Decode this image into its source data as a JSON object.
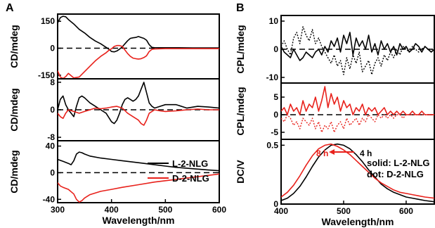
{
  "panel_labels": [
    "A",
    "B"
  ],
  "colors": {
    "l_series": "#000000",
    "d_series": "#e8211b"
  },
  "chart_data": [
    {
      "id": "A1",
      "type": "line",
      "panel": "A",
      "ylabel": "CD/mdeg",
      "xlim": [
        300,
        600
      ],
      "ylim": [
        -170,
        190
      ],
      "yticks": [
        150,
        0,
        -150
      ],
      "xticks": [],
      "zero_line": true,
      "series": [
        {
          "color": "#000000",
          "x": [
            300,
            305,
            310,
            315,
            320,
            330,
            340,
            350,
            360,
            370,
            380,
            390,
            395,
            400,
            405,
            410,
            415,
            420,
            425,
            430,
            435,
            440,
            445,
            450,
            455,
            460,
            465,
            470,
            475,
            480,
            490,
            500,
            520,
            550,
            580,
            600
          ],
          "y": [
            140,
            170,
            178,
            175,
            160,
            135,
            105,
            85,
            60,
            40,
            25,
            5,
            -5,
            -18,
            -20,
            -15,
            -5,
            8,
            25,
            42,
            55,
            58,
            60,
            65,
            60,
            55,
            45,
            20,
            5,
            3,
            3,
            3,
            3,
            2,
            2,
            2
          ]
        },
        {
          "color": "#e8211b",
          "x": [
            300,
            305,
            310,
            315,
            320,
            330,
            340,
            350,
            360,
            370,
            380,
            390,
            395,
            400,
            405,
            410,
            415,
            420,
            425,
            430,
            435,
            440,
            445,
            450,
            455,
            460,
            465,
            470,
            475,
            480,
            490,
            500,
            520,
            550,
            580,
            600
          ],
          "y": [
            -125,
            -160,
            -168,
            -158,
            -140,
            -165,
            -160,
            -130,
            -100,
            -70,
            -45,
            -25,
            -12,
            -3,
            10,
            15,
            15,
            10,
            -10,
            -30,
            -45,
            -55,
            -58,
            -60,
            -58,
            -52,
            -42,
            -18,
            -6,
            -4,
            -3,
            -2,
            -2,
            -2,
            -2,
            -2
          ]
        }
      ]
    },
    {
      "id": "A2",
      "type": "line",
      "panel": "A",
      "ylabel": "CD/mdeg",
      "xlim": [
        300,
        600
      ],
      "ylim": [
        -9,
        9
      ],
      "yticks": [
        8,
        0,
        -8
      ],
      "xticks": [],
      "zero_line": true,
      "series": [
        {
          "name": "L-2-NLG",
          "color": "#000000",
          "x": [
            300,
            305,
            310,
            315,
            320,
            325,
            330,
            335,
            340,
            345,
            350,
            360,
            370,
            380,
            390,
            400,
            405,
            410,
            415,
            420,
            425,
            430,
            435,
            440,
            445,
            450,
            455,
            460,
            465,
            470,
            475,
            480,
            490,
            500,
            520,
            540,
            560,
            580,
            600
          ],
          "y": [
            0,
            3,
            4,
            1.5,
            0,
            -1,
            -2,
            1,
            3.5,
            4,
            3.5,
            2,
            1,
            0,
            -1,
            -3.5,
            -4,
            -3,
            -1,
            1.5,
            3,
            3.5,
            3,
            2.5,
            3,
            4,
            6,
            8,
            5,
            2,
            1,
            0.5,
            1,
            1.5,
            1.5,
            0.5,
            1,
            0.8,
            0.5
          ]
        },
        {
          "name": "D-2-NLG",
          "color": "#e8211b",
          "x": [
            300,
            305,
            310,
            315,
            320,
            330,
            340,
            350,
            360,
            370,
            380,
            390,
            400,
            410,
            420,
            430,
            440,
            450,
            455,
            460,
            465,
            470,
            475,
            480,
            490,
            500,
            520,
            540,
            560,
            580,
            600
          ],
          "y": [
            -1,
            -2,
            -2.5,
            -1,
            0,
            -0.5,
            -1,
            -0.5,
            0,
            0.5,
            0.3,
            0.5,
            0.8,
            1,
            0.5,
            -1,
            -2,
            -3,
            -4,
            -4.5,
            -3,
            -1,
            -0.5,
            0,
            -0.3,
            -0.5,
            -0.3,
            0,
            0.2,
            0,
            0
          ]
        }
      ],
      "legend": {
        "placement": "bottom-right",
        "entries": [
          "L-2-NLG",
          "D-2-NLG"
        ]
      }
    },
    {
      "id": "A3",
      "type": "line",
      "panel": "A",
      "ylabel": "CD/mdeg",
      "xlabel": "Wavelength/nm",
      "xlim": [
        300,
        600
      ],
      "ylim": [
        -45,
        48
      ],
      "yticks": [
        40,
        0,
        -40
      ],
      "xticks": [
        300,
        400,
        500,
        600
      ],
      "zero_line": true,
      "series": [
        {
          "color": "#000000",
          "x": [
            300,
            310,
            320,
            325,
            330,
            335,
            340,
            345,
            350,
            360,
            380,
            400,
            420,
            450,
            480,
            500,
            520,
            550,
            580,
            600
          ],
          "y": [
            20,
            17,
            14,
            12,
            18,
            28,
            31,
            30,
            28,
            25,
            22,
            20,
            18,
            15,
            12,
            10,
            8,
            6,
            4,
            3
          ]
        },
        {
          "color": "#e8211b",
          "x": [
            300,
            305,
            310,
            320,
            330,
            335,
            340,
            345,
            350,
            360,
            380,
            400,
            420,
            450,
            480,
            500,
            520,
            550,
            580,
            600
          ],
          "y": [
            -15,
            -20,
            -22,
            -25,
            -32,
            -40,
            -44,
            -42,
            -38,
            -33,
            -28,
            -25,
            -22,
            -18,
            -14,
            -12,
            -10,
            -7,
            -4,
            -2
          ]
        }
      ]
    },
    {
      "id": "B1",
      "type": "line",
      "panel": "B",
      "ylabel": "CPL/mdeg",
      "xlim": [
        400,
        645
      ],
      "ylim": [
        -12,
        12
      ],
      "yticks": [
        10,
        0,
        -10
      ],
      "xticks": [],
      "zero_line": true,
      "series": [
        {
          "style": "solid",
          "color": "#000000",
          "x": [
            400,
            405,
            410,
            415,
            420,
            425,
            430,
            435,
            440,
            445,
            450,
            455,
            460,
            465,
            470,
            475,
            480,
            485,
            490,
            495,
            500,
            505,
            510,
            515,
            520,
            525,
            530,
            535,
            540,
            545,
            550,
            555,
            560,
            565,
            570,
            575,
            580,
            585,
            590,
            595,
            600,
            605,
            610,
            615,
            620,
            625,
            630,
            635,
            640,
            645
          ],
          "y": [
            1,
            -1,
            -2,
            -3,
            0,
            -2,
            -4,
            -3,
            -1,
            -2,
            -3,
            -1,
            0,
            -2,
            1,
            -1,
            3,
            1,
            4,
            -1,
            5,
            2,
            6,
            -2,
            4,
            1,
            3,
            0,
            5,
            -1,
            2,
            -2,
            3,
            0,
            2,
            -1,
            1,
            -2,
            2,
            0,
            1,
            -1,
            0,
            2,
            1,
            -1,
            1,
            0,
            -1,
            0
          ]
        },
        {
          "style": "dotted",
          "color": "#000000",
          "x": [
            400,
            405,
            410,
            415,
            420,
            425,
            430,
            435,
            440,
            445,
            450,
            455,
            460,
            465,
            470,
            475,
            480,
            485,
            490,
            495,
            500,
            505,
            510,
            515,
            520,
            525,
            530,
            535,
            540,
            545,
            550,
            555,
            560,
            565,
            570,
            575,
            580,
            585,
            590,
            595,
            600,
            605,
            610,
            615,
            620,
            625,
            630,
            635,
            640,
            645
          ],
          "y": [
            1,
            3,
            0,
            -2,
            4,
            6,
            2,
            8,
            5,
            3,
            7,
            2,
            4,
            1,
            -1,
            -3,
            -5,
            -2,
            -6,
            -4,
            -9,
            -3,
            -7,
            -2,
            -5,
            -1,
            -8,
            -6,
            -4,
            -9,
            -5,
            -3,
            -6,
            -2,
            -4,
            -1,
            -3,
            0,
            -2,
            1,
            0,
            -1,
            1,
            0,
            -1,
            0,
            1,
            0,
            0,
            0
          ]
        }
      ]
    },
    {
      "id": "B2",
      "type": "line",
      "panel": "B",
      "ylabel": "CPL/mdeg",
      "xlim": [
        400,
        645
      ],
      "ylim": [
        -7,
        9
      ],
      "yticks": [
        5,
        0,
        -5
      ],
      "xticks": [],
      "zero_line": true,
      "series": [
        {
          "style": "solid",
          "color": "#e8211b",
          "x": [
            400,
            405,
            410,
            415,
            420,
            425,
            430,
            435,
            440,
            445,
            450,
            455,
            460,
            465,
            470,
            475,
            480,
            485,
            490,
            495,
            500,
            505,
            510,
            515,
            520,
            525,
            530,
            535,
            540,
            545,
            550,
            555,
            560,
            565,
            570,
            575,
            580,
            585,
            590,
            595,
            600,
            605,
            610,
            615,
            620,
            625,
            630,
            635,
            640,
            645
          ],
          "y": [
            1,
            2,
            0,
            3,
            1,
            2,
            0,
            4,
            1,
            3,
            2,
            5,
            1,
            4,
            8,
            2,
            6,
            3,
            5,
            1,
            4,
            2,
            3,
            0,
            2,
            1,
            3,
            0,
            2,
            1,
            2,
            0,
            1,
            2,
            0,
            1,
            0,
            1,
            0,
            1,
            0,
            0,
            1,
            0,
            0,
            1,
            0,
            0,
            0,
            0
          ]
        },
        {
          "style": "dotted",
          "color": "#e8211b",
          "x": [
            400,
            405,
            410,
            415,
            420,
            425,
            430,
            435,
            440,
            445,
            450,
            455,
            460,
            465,
            470,
            475,
            480,
            485,
            490,
            495,
            500,
            505,
            510,
            515,
            520,
            525,
            530,
            535,
            540,
            545,
            550,
            555,
            560,
            565,
            570,
            575,
            580,
            585,
            590,
            595,
            600,
            605,
            610,
            615,
            620,
            625,
            630,
            635,
            640,
            645
          ],
          "y": [
            -1,
            -2,
            0,
            -1,
            -3,
            -2,
            -4,
            -1,
            -2,
            -3,
            -1,
            -4,
            -2,
            -5,
            -3,
            -4,
            -2,
            -5,
            -3,
            -2,
            -4,
            -1,
            -3,
            -2,
            -1,
            -3,
            -1,
            -2,
            0,
            -1,
            -2,
            0,
            -1,
            0,
            -1,
            0,
            -1,
            0,
            0,
            -1,
            0,
            0,
            0,
            0,
            0,
            0,
            0,
            0,
            0,
            0
          ]
        }
      ],
      "legend": {
        "placement": "right",
        "lines": [
          "solid: L-2-NLG",
          "dot: D-2-NLG"
        ]
      }
    },
    {
      "id": "B3",
      "type": "line",
      "panel": "B",
      "ylabel": "DC/V",
      "xlabel": "Wavelength/nm",
      "xlim": [
        400,
        645
      ],
      "ylim": [
        0,
        0.55
      ],
      "yticks": [
        0.5,
        0.0
      ],
      "xticks": [
        400,
        500,
        600
      ],
      "zero_line": false,
      "series": [
        {
          "name": "4 h",
          "color": "#000000",
          "x": [
            400,
            410,
            420,
            430,
            440,
            450,
            460,
            470,
            480,
            490,
            500,
            510,
            520,
            530,
            540,
            550,
            560,
            570,
            580,
            590,
            600,
            610,
            620,
            630,
            645
          ],
          "y": [
            0.03,
            0.05,
            0.09,
            0.15,
            0.23,
            0.32,
            0.4,
            0.46,
            0.5,
            0.51,
            0.5,
            0.47,
            0.42,
            0.36,
            0.29,
            0.23,
            0.17,
            0.13,
            0.1,
            0.08,
            0.06,
            0.05,
            0.04,
            0.03,
            0.02
          ]
        },
        {
          "name": "8 h",
          "color": "#e8211b",
          "x": [
            400,
            410,
            420,
            430,
            440,
            450,
            460,
            470,
            480,
            490,
            500,
            510,
            520,
            530,
            540,
            550,
            560,
            570,
            580,
            590,
            600,
            610,
            620,
            630,
            645
          ],
          "y": [
            0.06,
            0.1,
            0.16,
            0.24,
            0.33,
            0.41,
            0.47,
            0.5,
            0.51,
            0.49,
            0.46,
            0.42,
            0.37,
            0.32,
            0.27,
            0.22,
            0.18,
            0.15,
            0.12,
            0.1,
            0.09,
            0.08,
            0.07,
            0.06,
            0.05
          ]
        }
      ],
      "annotations": [
        "8 h",
        "4 h"
      ]
    }
  ]
}
